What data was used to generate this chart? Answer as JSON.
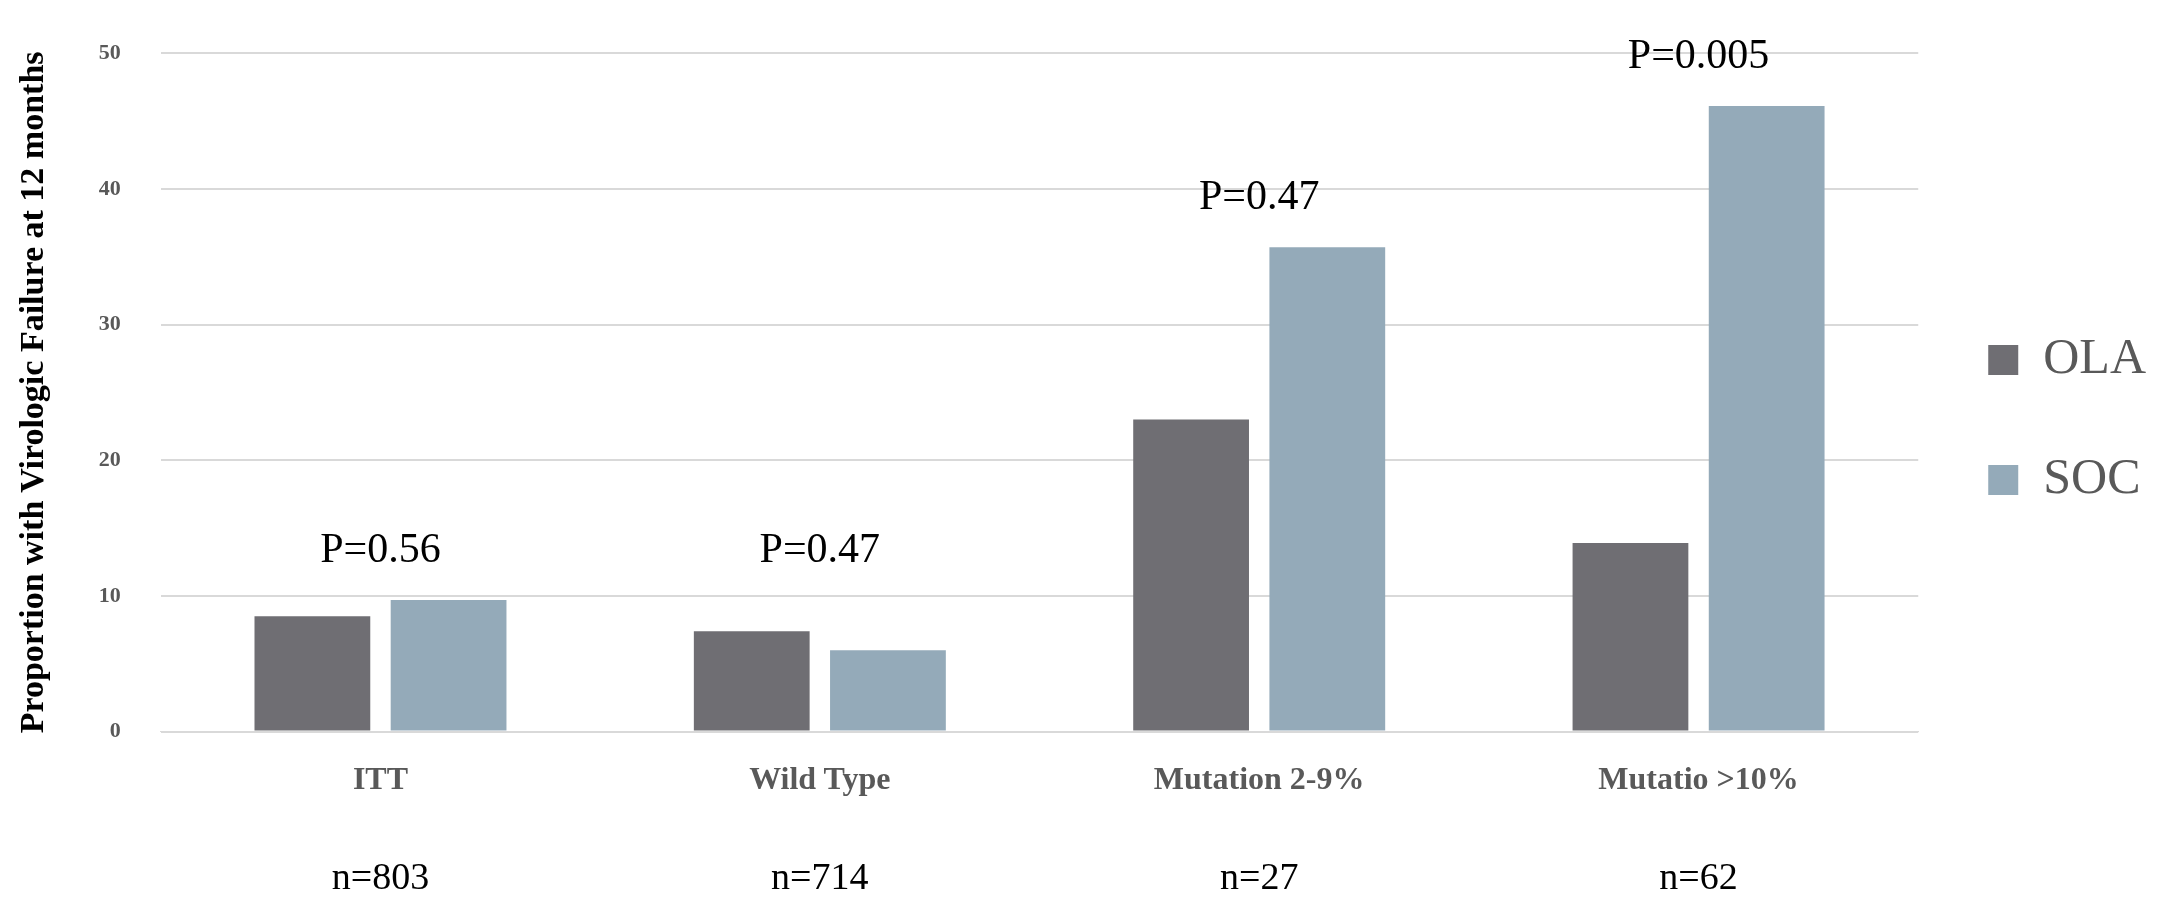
{
  "chart_data": {
    "type": "bar",
    "ylabel": "Proportion with Virologic Failure at 12 months",
    "categories": [
      "ITT",
      "Wild Type",
      "Mutation 2-9%",
      "Mutatio >10%"
    ],
    "series": [
      {
        "name": "OLA",
        "color": "#6f6e73",
        "values": [
          8.5,
          7.4,
          23.0,
          13.9
        ]
      },
      {
        "name": "SOC",
        "color": "#94aab9",
        "values": [
          9.7,
          6.0,
          35.7,
          46.1
        ]
      }
    ],
    "ylim": [
      0,
      50
    ],
    "yticks": [
      0,
      10,
      20,
      30,
      40,
      50
    ],
    "grid": "y",
    "legend": "right",
    "annotations": [
      "P=0.56",
      "P=0.47",
      "P=0.47",
      "P=0.005",
      "n=803",
      "n=714",
      "n=27",
      "n=62"
    ]
  }
}
